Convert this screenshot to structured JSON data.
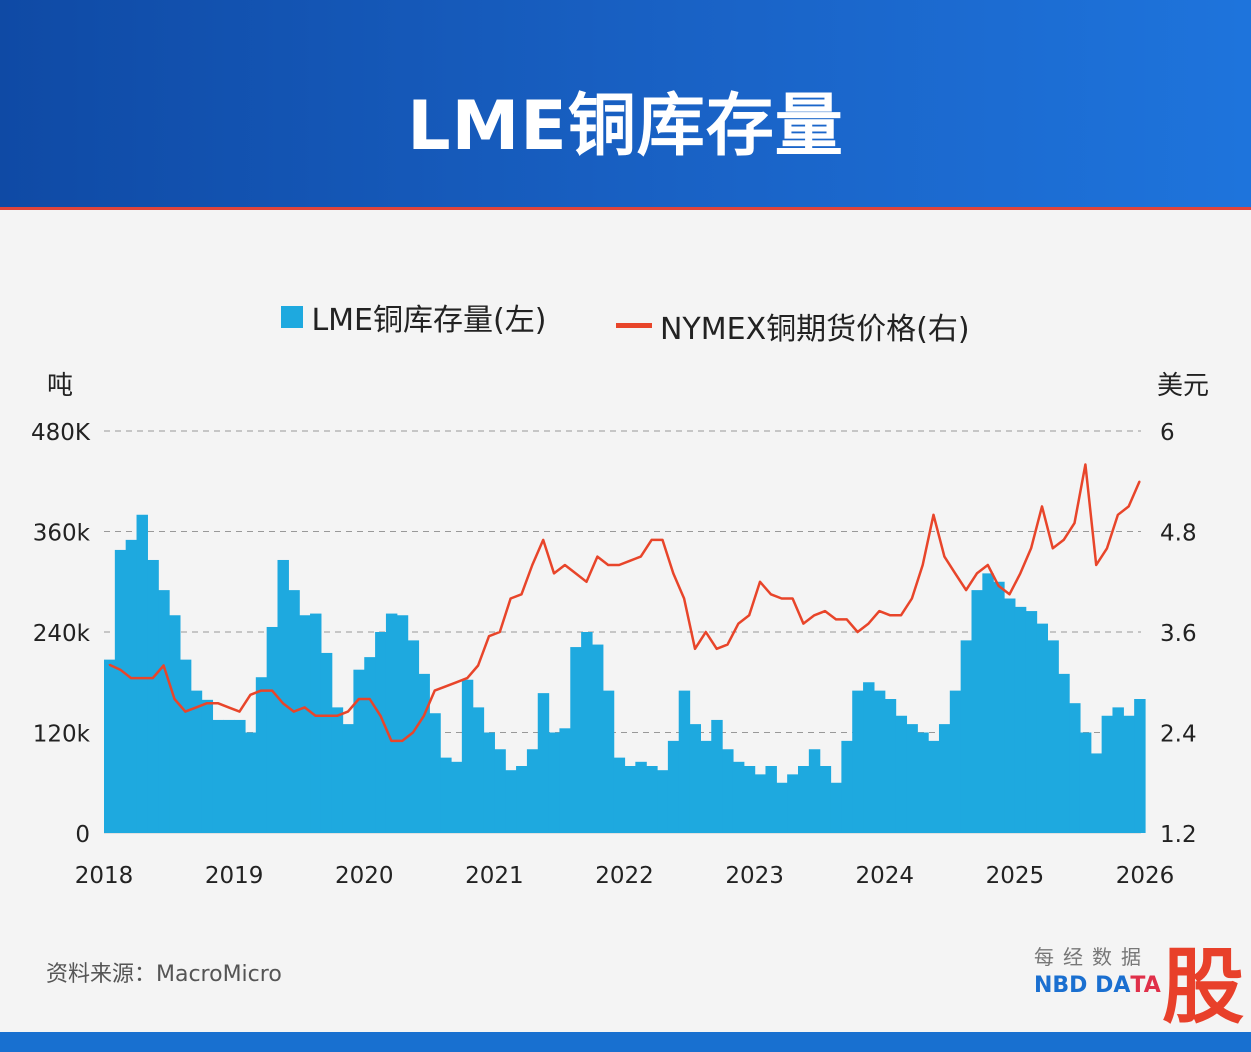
{
  "title": "LME铜库存量",
  "colors": {
    "inventory": "#1ea9df",
    "price": "#e8452a",
    "header": "#1a5fc0"
  },
  "chart_data": {
    "type": "bar+line",
    "title": "LME铜库存量",
    "left_unit": "吨",
    "right_unit": "美元",
    "x_ticks": [
      "2018",
      "2019",
      "2020",
      "2021",
      "2022",
      "2023",
      "2024",
      "2025",
      "2026"
    ],
    "left_ticks": [
      "0",
      "120k",
      "240k",
      "360k",
      "480K"
    ],
    "right_ticks": [
      "1.2",
      "2.4",
      "3.6",
      "4.8",
      "6"
    ],
    "left_ylim": [
      0,
      480000
    ],
    "right_ylim": [
      1.2,
      6
    ],
    "x_range": [
      "2018-01",
      "2026-01"
    ],
    "grid": "horizontal dashed",
    "legend_position": "top",
    "start": "2018-01",
    "frequency": "monthly",
    "series": [
      {
        "name": "LME铜库存量(左)",
        "type": "area",
        "axis": "left",
        "values": [
          207000,
          338000,
          350000,
          380000,
          326000,
          290000,
          260000,
          207000,
          170000,
          159000,
          135000,
          135000,
          135000,
          120000,
          186000,
          246000,
          326000,
          290000,
          260000,
          262000,
          215000,
          150000,
          130000,
          195000,
          210000,
          240000,
          262000,
          260000,
          230000,
          190000,
          143000,
          90000,
          85000,
          183000,
          150000,
          120000,
          100000,
          75000,
          80000,
          100000,
          167000,
          120000,
          125000,
          222000,
          240000,
          225000,
          170000,
          90000,
          80000,
          85000,
          80000,
          75000,
          110000,
          170000,
          130000,
          110000,
          135000,
          100000,
          85000,
          80000,
          70000,
          80000,
          60000,
          70000,
          80000,
          100000,
          80000,
          60000,
          110000,
          170000,
          180000,
          170000,
          160000,
          140000,
          130000,
          120000,
          110000,
          130000,
          170000,
          230000,
          290000,
          310000,
          300000,
          280000,
          270000,
          265000,
          250000,
          230000,
          190000,
          155000,
          120000,
          95000,
          140000,
          150000,
          140000,
          160000
        ]
      },
      {
        "name": "NYMEX铜期货价格(右)",
        "type": "line",
        "axis": "right",
        "values": [
          3.21,
          3.15,
          3.05,
          3.05,
          3.05,
          3.2,
          2.8,
          2.65,
          2.7,
          2.75,
          2.75,
          2.7,
          2.65,
          2.85,
          2.9,
          2.9,
          2.75,
          2.65,
          2.7,
          2.6,
          2.6,
          2.6,
          2.65,
          2.8,
          2.8,
          2.6,
          2.3,
          2.3,
          2.4,
          2.6,
          2.9,
          2.95,
          3.0,
          3.05,
          3.2,
          3.55,
          3.6,
          4.0,
          4.05,
          4.4,
          4.7,
          4.3,
          4.4,
          4.3,
          4.2,
          4.5,
          4.4,
          4.4,
          4.45,
          4.5,
          4.7,
          4.7,
          4.3,
          4.0,
          3.4,
          3.6,
          3.4,
          3.45,
          3.7,
          3.8,
          4.2,
          4.05,
          4.0,
          4.0,
          3.7,
          3.8,
          3.85,
          3.75,
          3.75,
          3.6,
          3.7,
          3.85,
          3.8,
          3.8,
          4.0,
          4.4,
          5.0,
          4.5,
          4.3,
          4.1,
          4.3,
          4.4,
          4.15,
          4.05,
          4.3,
          4.6,
          5.1,
          4.6,
          4.7,
          4.9,
          5.6,
          4.4,
          4.6,
          5.0,
          5.1,
          5.4
        ]
      }
    ]
  },
  "legend": {
    "inventory": "LME铜库存量(左)",
    "price": "NYMEX铜期货价格(右)"
  },
  "source": "资料来源：MacroMicro",
  "logo": {
    "cn": "每经数据",
    "en1": "NBD DA",
    "en2": "TA",
    "mark": "股",
    "copyright": "©"
  }
}
